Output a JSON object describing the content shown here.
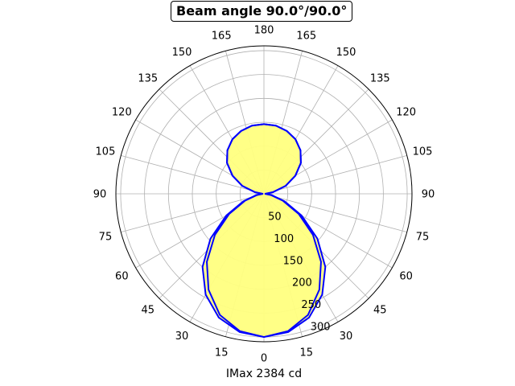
{
  "chart_data": {
    "type": "polar",
    "title": "Beam angle 90.0°/90.0°",
    "xlabel": "IMax 2384 cd",
    "angle_tick_labels": [
      "0",
      "15",
      "30",
      "45",
      "60",
      "75",
      "90",
      "105",
      "120",
      "135",
      "150",
      "165",
      "180",
      "165",
      "150",
      "135",
      "120",
      "105",
      "90",
      "75",
      "60",
      "45",
      "30",
      "15"
    ],
    "radial_tick_labels": [
      "50",
      "100",
      "150",
      "200",
      "250",
      "300"
    ],
    "radial_ticks": [
      50,
      100,
      150,
      200,
      250,
      300
    ],
    "rlim": [
      0,
      310
    ],
    "grid": true,
    "fill_color": "#ffff80",
    "line_color": "#0000ff",
    "series": [
      {
        "angles": [
          0,
          10,
          20,
          30,
          40,
          50,
          60,
          70,
          80,
          90,
          100,
          110,
          120,
          130,
          140,
          150,
          160,
          170,
          180
        ],
        "values": [
          300,
          294,
          276,
          244,
          200,
          146,
          91,
          46,
          17,
          3,
          19,
          48,
          76,
          101,
          119,
          132,
          140,
          145,
          146
        ]
      },
      {
        "angles": [
          0,
          10,
          20,
          30,
          40,
          50,
          60,
          70,
          80,
          90,
          100,
          110,
          120,
          130,
          140,
          150,
          160,
          170,
          180
        ],
        "values": [
          300,
          292,
          270,
          232,
          186,
          134,
          84,
          42,
          15,
          3,
          19,
          48,
          76,
          101,
          119,
          132,
          140,
          145,
          146
        ]
      }
    ]
  }
}
